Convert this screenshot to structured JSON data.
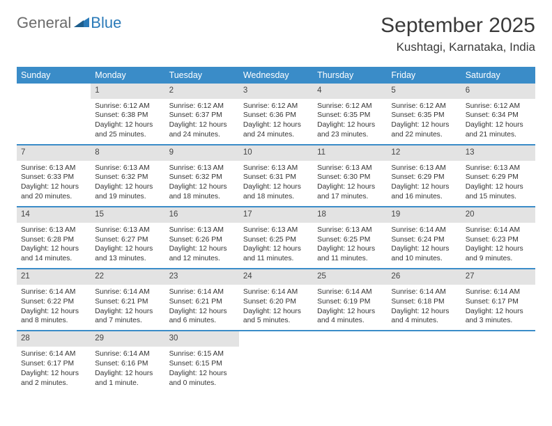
{
  "logo": {
    "gray": "General",
    "blue": "Blue"
  },
  "title": "September 2025",
  "location": "Kushtagi, Karnataka, India",
  "columns": [
    "Sunday",
    "Monday",
    "Tuesday",
    "Wednesday",
    "Thursday",
    "Friday",
    "Saturday"
  ],
  "style": {
    "header_bg": "#3a8cc8",
    "header_fg": "#ffffff",
    "daynum_bg": "#e3e3e3",
    "row_border": "#3a8cc8",
    "body_fontsize": 10.3,
    "title_fontsize": 30,
    "location_fontsize": 17
  },
  "weeks": [
    [
      null,
      {
        "n": "1",
        "sr": "6:12 AM",
        "ss": "6:38 PM",
        "dl": "12 hours and 25 minutes."
      },
      {
        "n": "2",
        "sr": "6:12 AM",
        "ss": "6:37 PM",
        "dl": "12 hours and 24 minutes."
      },
      {
        "n": "3",
        "sr": "6:12 AM",
        "ss": "6:36 PM",
        "dl": "12 hours and 24 minutes."
      },
      {
        "n": "4",
        "sr": "6:12 AM",
        "ss": "6:35 PM",
        "dl": "12 hours and 23 minutes."
      },
      {
        "n": "5",
        "sr": "6:12 AM",
        "ss": "6:35 PM",
        "dl": "12 hours and 22 minutes."
      },
      {
        "n": "6",
        "sr": "6:12 AM",
        "ss": "6:34 PM",
        "dl": "12 hours and 21 minutes."
      }
    ],
    [
      {
        "n": "7",
        "sr": "6:13 AM",
        "ss": "6:33 PM",
        "dl": "12 hours and 20 minutes."
      },
      {
        "n": "8",
        "sr": "6:13 AM",
        "ss": "6:32 PM",
        "dl": "12 hours and 19 minutes."
      },
      {
        "n": "9",
        "sr": "6:13 AM",
        "ss": "6:32 PM",
        "dl": "12 hours and 18 minutes."
      },
      {
        "n": "10",
        "sr": "6:13 AM",
        "ss": "6:31 PM",
        "dl": "12 hours and 18 minutes."
      },
      {
        "n": "11",
        "sr": "6:13 AM",
        "ss": "6:30 PM",
        "dl": "12 hours and 17 minutes."
      },
      {
        "n": "12",
        "sr": "6:13 AM",
        "ss": "6:29 PM",
        "dl": "12 hours and 16 minutes."
      },
      {
        "n": "13",
        "sr": "6:13 AM",
        "ss": "6:29 PM",
        "dl": "12 hours and 15 minutes."
      }
    ],
    [
      {
        "n": "14",
        "sr": "6:13 AM",
        "ss": "6:28 PM",
        "dl": "12 hours and 14 minutes."
      },
      {
        "n": "15",
        "sr": "6:13 AM",
        "ss": "6:27 PM",
        "dl": "12 hours and 13 minutes."
      },
      {
        "n": "16",
        "sr": "6:13 AM",
        "ss": "6:26 PM",
        "dl": "12 hours and 12 minutes."
      },
      {
        "n": "17",
        "sr": "6:13 AM",
        "ss": "6:25 PM",
        "dl": "12 hours and 11 minutes."
      },
      {
        "n": "18",
        "sr": "6:13 AM",
        "ss": "6:25 PM",
        "dl": "12 hours and 11 minutes."
      },
      {
        "n": "19",
        "sr": "6:14 AM",
        "ss": "6:24 PM",
        "dl": "12 hours and 10 minutes."
      },
      {
        "n": "20",
        "sr": "6:14 AM",
        "ss": "6:23 PM",
        "dl": "12 hours and 9 minutes."
      }
    ],
    [
      {
        "n": "21",
        "sr": "6:14 AM",
        "ss": "6:22 PM",
        "dl": "12 hours and 8 minutes."
      },
      {
        "n": "22",
        "sr": "6:14 AM",
        "ss": "6:21 PM",
        "dl": "12 hours and 7 minutes."
      },
      {
        "n": "23",
        "sr": "6:14 AM",
        "ss": "6:21 PM",
        "dl": "12 hours and 6 minutes."
      },
      {
        "n": "24",
        "sr": "6:14 AM",
        "ss": "6:20 PM",
        "dl": "12 hours and 5 minutes."
      },
      {
        "n": "25",
        "sr": "6:14 AM",
        "ss": "6:19 PM",
        "dl": "12 hours and 4 minutes."
      },
      {
        "n": "26",
        "sr": "6:14 AM",
        "ss": "6:18 PM",
        "dl": "12 hours and 4 minutes."
      },
      {
        "n": "27",
        "sr": "6:14 AM",
        "ss": "6:17 PM",
        "dl": "12 hours and 3 minutes."
      }
    ],
    [
      {
        "n": "28",
        "sr": "6:14 AM",
        "ss": "6:17 PM",
        "dl": "12 hours and 2 minutes."
      },
      {
        "n": "29",
        "sr": "6:14 AM",
        "ss": "6:16 PM",
        "dl": "12 hours and 1 minute."
      },
      {
        "n": "30",
        "sr": "6:15 AM",
        "ss": "6:15 PM",
        "dl": "12 hours and 0 minutes."
      },
      null,
      null,
      null,
      null
    ]
  ],
  "labels": {
    "sunrise": "Sunrise:",
    "sunset": "Sunset:",
    "daylight": "Daylight:"
  }
}
